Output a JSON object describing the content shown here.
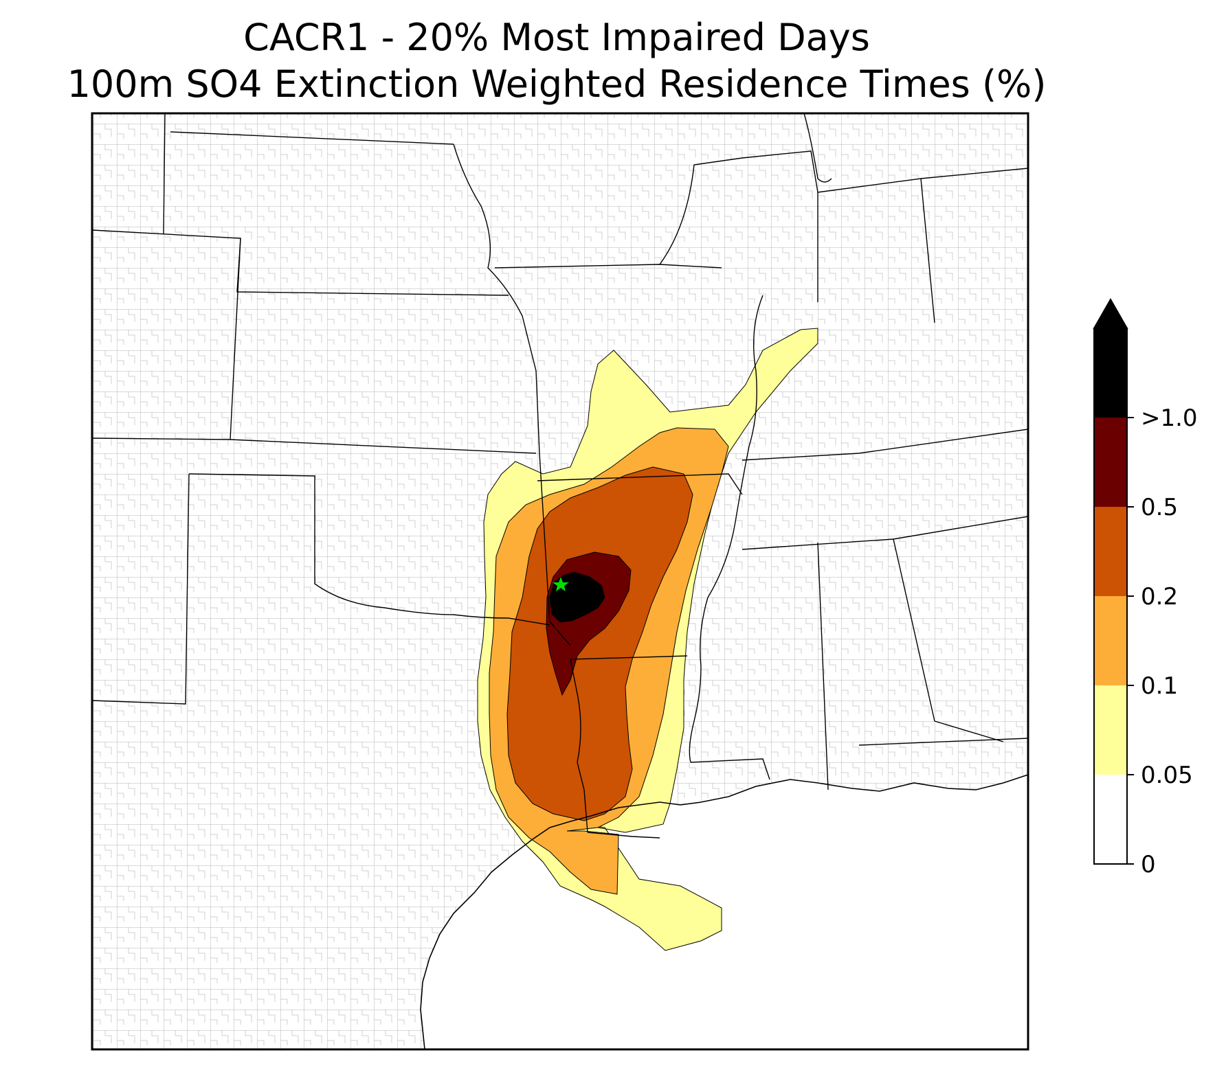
{
  "title": {
    "line1": "CACR1 - 20% Most Impaired Days",
    "line2": "100m SO4 Extinction Weighted Residence Times (%)"
  },
  "map": {
    "region": "South-central United States",
    "site_marker": {
      "type": "star",
      "color": "#00e000"
    }
  },
  "colorbar": {
    "extend": "max",
    "ticks": [
      "0",
      "0.05",
      "0.1",
      "0.2",
      "0.5",
      ">1.0"
    ],
    "bins": [
      {
        "range": "0-0.05",
        "color": "#ffffff"
      },
      {
        "range": "0.05-0.1",
        "color": "#ffff99"
      },
      {
        "range": "0.1-0.2",
        "color": "#fdae38"
      },
      {
        "range": "0.2-0.5",
        "color": "#cc5204"
      },
      {
        "range": "0.5-1.0",
        "color": "#6b0000"
      },
      {
        "range": ">1.0",
        "color": "#000000"
      }
    ]
  }
}
